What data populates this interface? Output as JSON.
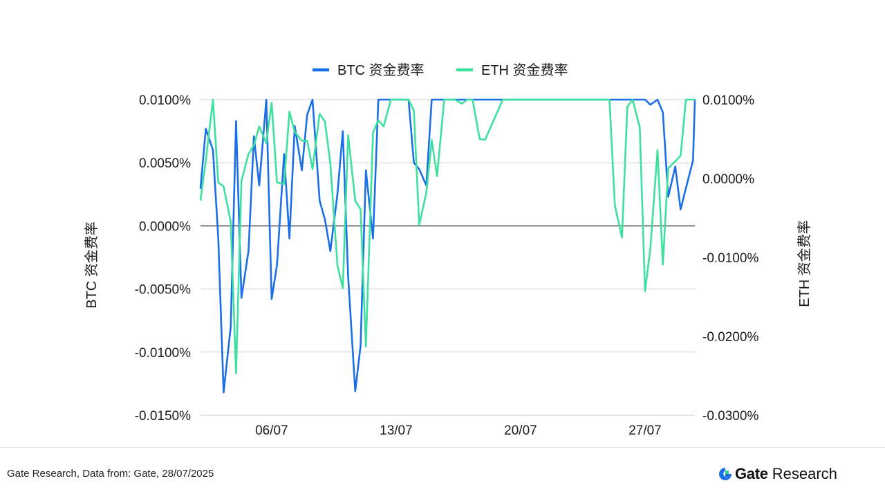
{
  "legend": {
    "btc": "BTC 资金费率",
    "eth": "ETH  资金费率"
  },
  "colors": {
    "btc": "#1a6ee8",
    "eth": "#3ee0a0",
    "zero_line": "#222222",
    "grid": "#d0d0d0"
  },
  "footer": {
    "source": "Gate Research, Data from: Gate, 28/07/2025",
    "brand_name": "Gate",
    "brand_sub": "Research",
    "brand_icon": "gate-logo-icon"
  },
  "chart_data": {
    "type": "line",
    "title": "",
    "legend_position": "top-center",
    "grid": true,
    "x_ticks": [
      "06/07",
      "13/07",
      "20/07",
      "27/07"
    ],
    "x_tick_positions": [
      5.0,
      12.0,
      19.0,
      26.0
    ],
    "xlim": [
      1.0,
      28.8
    ],
    "y_left": {
      "label": "BTC  资金费率",
      "lim": [
        -0.015,
        0.01
      ],
      "ticks": [
        "0.0100%",
        "0.0050%",
        "0.0000%",
        "-0.0050%",
        "-0.0100%",
        "-0.0150%"
      ],
      "tick_values": [
        0.01,
        0.005,
        0.0,
        -0.005,
        -0.01,
        -0.015
      ]
    },
    "y_right": {
      "label": "ETH 资金费率",
      "lim": [
        -0.03,
        0.01
      ],
      "ticks": [
        "0.0100%",
        "0.0000%",
        "-0.0100%",
        "-0.0200%",
        "-0.0300%"
      ],
      "tick_values": [
        0.01,
        0.0,
        -0.01,
        -0.02,
        -0.03
      ]
    },
    "series": [
      {
        "name": "BTC 资金费率",
        "axis": "left",
        "x": [
          1.0,
          1.3,
          1.7,
          2.0,
          2.3,
          2.7,
          3.0,
          3.3,
          3.7,
          4.0,
          4.3,
          4.7,
          5.0,
          5.3,
          5.7,
          6.0,
          6.3,
          6.7,
          7.0,
          7.3,
          7.7,
          8.0,
          8.3,
          8.7,
          9.0,
          9.3,
          9.7,
          10.0,
          10.3,
          10.7,
          11.0,
          11.3,
          11.7,
          12.0,
          12.3,
          12.7,
          13.0,
          13.3,
          13.7,
          14.0,
          14.3,
          14.7,
          15.0,
          16.0,
          17.0,
          18.0,
          19.0,
          20.0,
          21.0,
          22.0,
          23.0,
          24.0,
          25.0,
          26.0,
          26.3,
          26.7,
          27.0,
          27.3,
          27.7,
          28.0,
          28.3,
          28.7,
          28.8
        ],
        "values": [
          0.003,
          0.0077,
          0.006,
          -0.001,
          -0.0132,
          -0.008,
          0.0083,
          -0.0057,
          -0.002,
          0.0071,
          0.0032,
          0.01,
          -0.0058,
          -0.0031,
          0.0057,
          -0.001,
          0.0079,
          0.0044,
          0.0088,
          0.01,
          0.002,
          0.0005,
          -0.002,
          0.0025,
          0.0075,
          -0.004,
          -0.0131,
          -0.0095,
          0.0044,
          -0.001,
          0.01,
          0.01,
          0.01,
          0.01,
          0.01,
          0.01,
          0.005,
          0.0045,
          0.0032,
          0.01,
          0.01,
          0.01,
          0.01,
          0.01,
          0.01,
          0.01,
          0.01,
          0.01,
          0.01,
          0.01,
          0.01,
          0.01,
          0.01,
          0.01,
          0.0096,
          0.01,
          0.009,
          0.0023,
          0.0047,
          0.0013,
          0.003,
          0.0052,
          0.01
        ]
      },
      {
        "name": "ETH  资金费率",
        "axis": "right",
        "x": [
          1.0,
          1.3,
          1.7,
          2.0,
          2.3,
          2.7,
          3.0,
          3.3,
          3.7,
          4.0,
          4.3,
          4.7,
          5.0,
          5.3,
          5.7,
          6.0,
          6.3,
          6.7,
          7.0,
          7.3,
          7.7,
          8.0,
          8.3,
          8.7,
          9.0,
          9.3,
          9.7,
          10.0,
          10.3,
          10.7,
          11.0,
          11.3,
          11.7,
          12.0,
          12.3,
          12.7,
          13.0,
          13.3,
          13.7,
          14.0,
          14.3,
          14.7,
          15.0,
          15.3,
          15.7,
          16.0,
          16.3,
          16.7,
          17.0,
          18.0,
          19.0,
          20.0,
          21.0,
          22.0,
          23.0,
          24.0,
          24.3,
          24.7,
          25.0,
          25.3,
          25.7,
          26.0,
          26.3,
          26.7,
          27.0,
          27.3,
          27.7,
          28.0,
          28.3,
          28.7,
          28.8
        ],
        "values": [
          -0.0027,
          0.0023,
          0.01,
          -0.0005,
          -0.001,
          -0.0055,
          -0.0247,
          -0.0003,
          0.0031,
          0.0042,
          0.0066,
          0.0045,
          0.0096,
          -0.0005,
          -0.0007,
          0.0085,
          0.0059,
          0.0048,
          0.0048,
          0.0012,
          0.0082,
          0.0072,
          0.0019,
          -0.011,
          -0.0139,
          0.0055,
          -0.0028,
          -0.0039,
          -0.0213,
          0.0058,
          0.0074,
          0.0066,
          0.01,
          0.01,
          0.01,
          0.01,
          0.0086,
          -0.0059,
          -0.0018,
          0.0049,
          0.0003,
          0.01,
          0.01,
          0.01,
          0.0095,
          0.01,
          0.01,
          0.005,
          0.0049,
          0.01,
          0.01,
          0.01,
          0.01,
          0.01,
          0.01,
          0.01,
          -0.0034,
          -0.0075,
          0.0091,
          0.01,
          0.0065,
          -0.0143,
          -0.0088,
          0.0036,
          -0.0109,
          0.0013,
          0.0022,
          0.0029,
          0.01,
          0.01,
          0.01
        ]
      }
    ]
  }
}
